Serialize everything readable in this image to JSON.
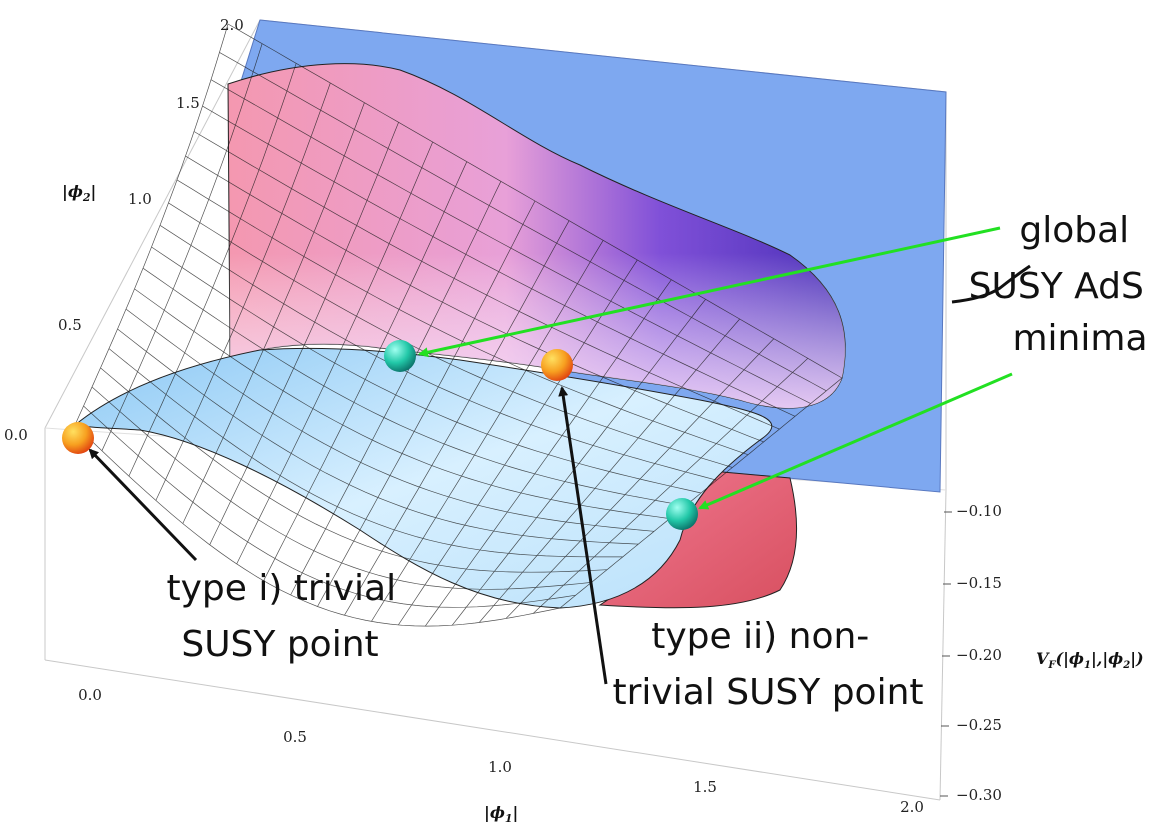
{
  "chart_data": {
    "type": "surface3d",
    "title": "",
    "xlabel": "|ϕ₁|",
    "ylabel": "|ϕ₂|",
    "zlabel": "V_F(|ϕ₁|,|ϕ₂|)",
    "xlabel_parts": {
      "main": "|ϕ",
      "sub": "1",
      "end": "|"
    },
    "ylabel_parts": {
      "main": "|ϕ",
      "sub": "2",
      "end": "|"
    },
    "zlabel_parts": {
      "a": "V",
      "asub": "F",
      "b": "(|ϕ",
      "bsub": "1",
      "c": "|,|ϕ",
      "csub": "2",
      "d": "|)"
    },
    "xlim": [
      0.0,
      2.0
    ],
    "ylim": [
      0.0,
      2.0
    ],
    "zlim": [
      -0.3,
      -0.1
    ],
    "x_ticks": [
      "0.0",
      "0.5",
      "1.0",
      "1.5",
      "2.0"
    ],
    "y_ticks": [
      "0.0",
      "0.5",
      "1.0",
      "1.5",
      "2.0"
    ],
    "z_ticks": [
      "−0.10",
      "−0.15",
      "−0.20",
      "−0.25",
      "−0.30"
    ],
    "colors": {
      "plane": "#7ea8f0",
      "surface_low": "#e8f6ff",
      "surface_mid": "#7ec4f4",
      "surface_pink": "#f090a8",
      "surface_purple": "#5838c8",
      "orange_point": "#f7a020",
      "teal_point": "#22c8a8",
      "green_arrow": "#22e022",
      "black_arrow": "#111111"
    },
    "points": [
      {
        "kind": "type i trivial SUSY point",
        "color": "orange"
      },
      {
        "kind": "type ii non-trivial SUSY point",
        "color": "orange"
      },
      {
        "kind": "global SUSY AdS minimum",
        "color": "teal"
      },
      {
        "kind": "global SUSY AdS minimum",
        "color": "teal"
      }
    ],
    "annotations": {
      "type_i_line1": "type i) trivial",
      "type_i_line2": "SUSY point",
      "type_ii_line1": "type ii) non-",
      "type_ii_line2": "trivial SUSY point",
      "ads_line1": "global",
      "ads_line2a": "SUSY",
      "ads_line2b": " AdS",
      "ads_line3": "minima"
    }
  }
}
